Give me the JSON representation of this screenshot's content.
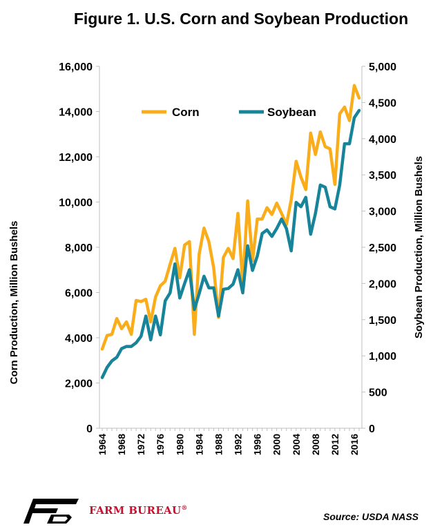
{
  "chart_data": {
    "type": "line",
    "title": "Figure 1. U.S. Corn and Soybean Production",
    "ylabel_left": "Corn Production, Million Bushels",
    "ylabel_right": "Soybean Production, Million Bushels",
    "ylim_left": [
      0,
      16000
    ],
    "ylim_right": [
      0,
      5000
    ],
    "yticks_left": [
      "0",
      "2,000",
      "4,000",
      "6,000",
      "8,000",
      "10,000",
      "12,000",
      "14,000",
      "16,000"
    ],
    "yticks_right": [
      "0",
      "500",
      "1,000",
      "1,500",
      "2,000",
      "2,500",
      "3,000",
      "3,500",
      "4,000",
      "4,500",
      "5,000"
    ],
    "xticks": [
      "1964",
      "1968",
      "1972",
      "1976",
      "1980",
      "1984",
      "1988",
      "1992",
      "1996",
      "2000",
      "2004",
      "2008",
      "2012",
      "2016"
    ],
    "x": [
      1964,
      1965,
      1966,
      1967,
      1968,
      1969,
      1970,
      1971,
      1972,
      1973,
      1974,
      1975,
      1976,
      1977,
      1978,
      1979,
      1980,
      1981,
      1982,
      1983,
      1984,
      1985,
      1986,
      1987,
      1988,
      1989,
      1990,
      1991,
      1992,
      1993,
      1994,
      1995,
      1996,
      1997,
      1998,
      1999,
      2000,
      2001,
      2002,
      2003,
      2004,
      2005,
      2006,
      2007,
      2008,
      2009,
      2010,
      2011,
      2012,
      2013,
      2014,
      2015,
      2016,
      2017
    ],
    "grid": false,
    "legend_position": "top-center",
    "series": [
      {
        "name": "Corn",
        "axis": "left",
        "color": "#f9ad1b",
        "values": [
          3500,
          4100,
          4150,
          4850,
          4400,
          4700,
          4150,
          5650,
          5600,
          5700,
          4700,
          5800,
          6300,
          6500,
          7250,
          7950,
          6650,
          8100,
          8250,
          4150,
          7700,
          8850,
          8250,
          7100,
          4900,
          7550,
          7950,
          7500,
          9500,
          6350,
          10050,
          7400,
          9250,
          9250,
          9750,
          9450,
          9950,
          9500,
          9000,
          10100,
          11800,
          11100,
          10550,
          13050,
          12100,
          13100,
          12450,
          12350,
          10780,
          13900,
          14200,
          13600,
          15150,
          14600
        ]
      },
      {
        "name": "Soybean",
        "axis": "right",
        "color": "#17849a",
        "values": [
          700,
          840,
          930,
          980,
          1100,
          1130,
          1130,
          1180,
          1270,
          1550,
          1220,
          1550,
          1290,
          1760,
          1870,
          2270,
          1800,
          2000,
          2190,
          1640,
          1860,
          2100,
          1940,
          1940,
          1550,
          1920,
          1930,
          1990,
          2190,
          1870,
          2520,
          2180,
          2380,
          2690,
          2740,
          2650,
          2760,
          2890,
          2760,
          2450,
          3120,
          3060,
          3190,
          2680,
          2970,
          3360,
          3330,
          3060,
          3030,
          3360,
          3930,
          3930,
          4290,
          4390
        ]
      }
    ]
  },
  "footer": {
    "org": "FARM BUREAU",
    "registered": "®",
    "source": "Source: USDA NASS"
  },
  "logo": {
    "color": "#000000",
    "accent": "#c8102e",
    "icon": "farm-bureau-fb-logo"
  }
}
